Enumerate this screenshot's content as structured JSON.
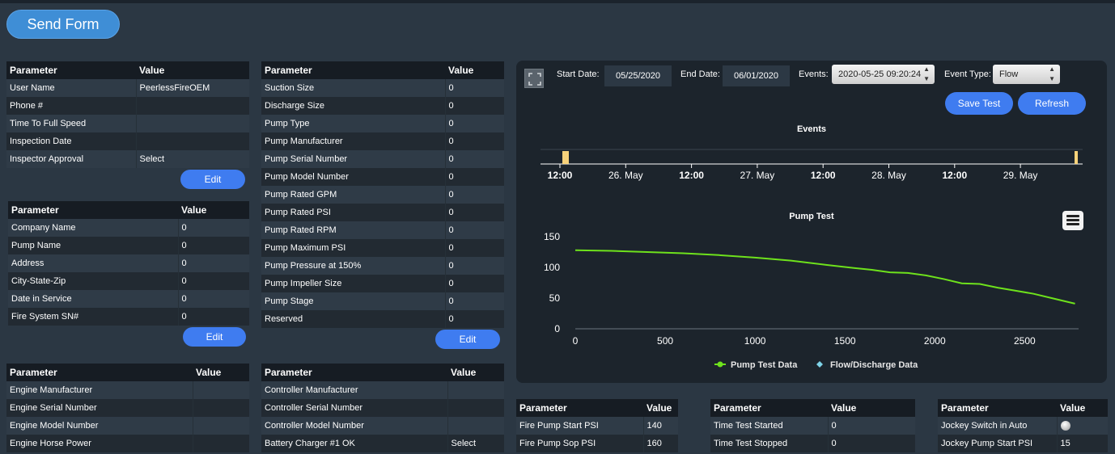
{
  "send_form_label": "Send Form",
  "edit_label": "Edit",
  "table_user": {
    "header": [
      "Parameter",
      "Value"
    ],
    "rows": [
      [
        "User Name",
        "PeerlessFireOEM"
      ],
      [
        "Phone #",
        ""
      ],
      [
        "Time To Full Speed",
        ""
      ],
      [
        "Inspection Date",
        ""
      ],
      [
        "Inspector Approval",
        "Select"
      ]
    ]
  },
  "table_company": {
    "header": [
      "Parameter",
      "Value"
    ],
    "rows": [
      [
        "Company Name",
        "0"
      ],
      [
        "Pump Name",
        "0"
      ],
      [
        "Address",
        "0"
      ],
      [
        "City-State-Zip",
        "0"
      ],
      [
        "Date in Service",
        "0"
      ],
      [
        "Fire System SN#",
        "0"
      ]
    ]
  },
  "table_engine": {
    "header": [
      "Parameter",
      "Value"
    ],
    "rows": [
      [
        "Engine Manufacturer",
        ""
      ],
      [
        "Engine Serial Number",
        ""
      ],
      [
        "Engine Model Number",
        ""
      ],
      [
        "Engine Horse Power",
        ""
      ]
    ]
  },
  "table_pump": {
    "header": [
      "Parameter",
      "Value"
    ],
    "rows": [
      [
        "Suction Size",
        "0"
      ],
      [
        "Discharge Size",
        "0"
      ],
      [
        "Pump Type",
        "0"
      ],
      [
        "Pump Manufacturer",
        "0"
      ],
      [
        "Pump Serial Number",
        "0"
      ],
      [
        "Pump Model Number",
        "0"
      ],
      [
        "Pump Rated GPM",
        "0"
      ],
      [
        "Pump Rated PSI",
        "0"
      ],
      [
        "Pump Rated RPM",
        "0"
      ],
      [
        "Pump Maximum PSI",
        "0"
      ],
      [
        "Pump Pressure at 150%",
        "0"
      ],
      [
        "Pump Impeller Size",
        "0"
      ],
      [
        "Pump Stage",
        "0"
      ],
      [
        "Reserved",
        "0"
      ]
    ]
  },
  "table_controller": {
    "header": [
      "Parameter",
      "Value"
    ],
    "rows": [
      [
        "Controller Manufacturer",
        ""
      ],
      [
        "Controller Serial Number",
        ""
      ],
      [
        "Controller Model Number",
        ""
      ],
      [
        "Battery Charger #1 OK",
        "Select"
      ]
    ]
  },
  "table_psi": {
    "header": [
      "Parameter",
      "Value"
    ],
    "rows": [
      [
        "Fire Pump Start PSI",
        "140"
      ],
      [
        "Fire Pump Sop PSI",
        "160"
      ]
    ]
  },
  "table_time": {
    "header": [
      "Parameter",
      "Value"
    ],
    "rows": [
      [
        "Time Test Started",
        "0"
      ],
      [
        "Time Test Stopped",
        "0"
      ]
    ]
  },
  "table_jockey": {
    "header": [
      "Parameter",
      "Value"
    ],
    "rows": [
      [
        "Jockey Switch in Auto",
        ""
      ],
      [
        "Jockey Pump Start PSI",
        "15"
      ]
    ]
  },
  "controls": {
    "start_date_label": "Start Date:",
    "start_date": "05/25/2020",
    "end_date_label": "End Date:",
    "end_date": "06/01/2020",
    "events_label": "Events:",
    "events_value": "2020-05-25 09:20:24",
    "event_type_label": "Event Type:",
    "event_type_value": "Flow",
    "save_test_label": "Save Test",
    "refresh_label": "Refresh"
  },
  "events_chart": {
    "title": "Events",
    "ticks": [
      "12:00",
      "26. May",
      "12:00",
      "27. May",
      "12:00",
      "28. May",
      "12:00",
      "29. May"
    ],
    "ticks_bold": [
      true,
      false,
      true,
      false,
      true,
      false,
      true,
      false
    ],
    "marker_color": "#f7d27a"
  },
  "chart_data": {
    "type": "line",
    "title": "Pump Test",
    "xlabel": "",
    "ylabel": "",
    "xlim": [
      0,
      2800
    ],
    "ylim": [
      0,
      150
    ],
    "x_ticks": [
      0,
      500,
      1000,
      1500,
      2000,
      2500
    ],
    "y_ticks": [
      0,
      50,
      100,
      150
    ],
    "legend": [
      "Pump Test Data",
      "Flow/Discharge Data"
    ],
    "legend_position": "bottom",
    "series": [
      {
        "name": "Pump Test Data",
        "color": "#6ee21c",
        "x": [
          0,
          200,
          400,
          600,
          800,
          1000,
          1200,
          1400,
          1550,
          1650,
          1750,
          1850,
          1950,
          2050,
          2150,
          2250,
          2350,
          2450,
          2550,
          2650,
          2780
        ],
        "y": [
          128,
          127,
          125,
          123,
          120,
          116,
          111,
          104,
          99,
          96,
          92,
          91,
          87,
          81,
          74,
          73,
          67,
          62,
          57,
          50,
          41
        ]
      },
      {
        "name": "Flow/Discharge Data",
        "color": "#7fd3e8",
        "x": [],
        "y": []
      }
    ]
  }
}
